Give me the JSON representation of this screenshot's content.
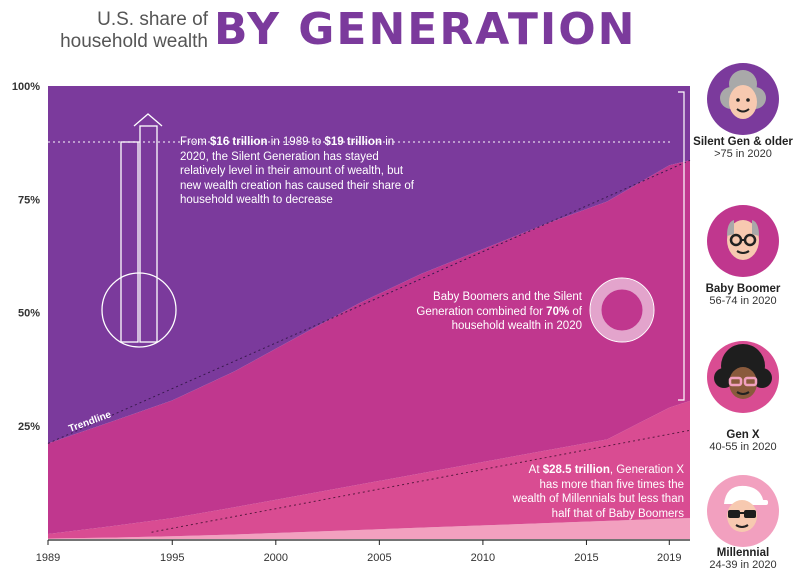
{
  "header": {
    "subtitle_line1": "U.S. share of",
    "subtitle_line2": "household wealth",
    "title": "BY GENERATION"
  },
  "chart_data": {
    "type": "area",
    "stacked": true,
    "x_range": [
      1989,
      2020
    ],
    "y_range": [
      0,
      100
    ],
    "y_ticks": [
      "100%",
      "75%",
      "50%",
      "25%"
    ],
    "x_ticks": [
      "1989",
      "1995",
      "2000",
      "2005",
      "2010",
      "2015",
      "2019"
    ],
    "x_tick_values": [
      1989,
      1995,
      2000,
      2005,
      2010,
      2015,
      2019
    ],
    "x": [
      1989,
      1992,
      1995,
      1998,
      2001,
      2004,
      2007,
      2010,
      2013,
      2016,
      2019,
      2020
    ],
    "series": [
      {
        "name": "Millennial",
        "color": "#f2a0bf",
        "values": [
          0.1,
          0.3,
          0.6,
          1,
          1.5,
          2,
          2.5,
          3,
          3.5,
          4,
          4.5,
          4.6
        ]
      },
      {
        "name": "Gen X",
        "color": "#d94c92",
        "values": [
          1,
          2.5,
          4,
          6,
          8,
          10,
          12,
          14,
          16,
          18,
          24.5,
          25.9
        ]
      },
      {
        "name": "Baby Boomer",
        "color": "#c0378e",
        "values": [
          20,
          23,
          26,
          30,
          35,
          40,
          44,
          47,
          50,
          52.5,
          53.5,
          53.1
        ]
      },
      {
        "name": "Silent Gen & older",
        "color": "#7b3a9c",
        "values": [
          78.9,
          74.2,
          69.4,
          63,
          55.5,
          48,
          41.5,
          36,
          30.5,
          25.5,
          17.5,
          16.4
        ]
      }
    ],
    "trendline_label": "Trendline",
    "colors": {
      "silent": "#7b3a9c",
      "boomer": "#c0378e",
      "genx": "#d94c92",
      "millennial": "#f2a0bf"
    }
  },
  "annotations": {
    "silent_p1": "From ",
    "silent_b1": "$16 trillion",
    "silent_p2": " in 1989 to ",
    "silent_b2": "$19 trillion",
    "silent_p3": " in 2020, the Silent Generation has stayed relatively level in their amount of wealth, but new wealth creation has caused their share of household wealth to decrease",
    "boomer_p1": "Baby Boomers and the Silent Generation combined for ",
    "boomer_b1": "70%",
    "boomer_p2": " of household wealth in 2020",
    "genx_p1": "At ",
    "genx_b1": "$28.5 trillion",
    "genx_p2": ", Generation X has more than five times the wealth of Millennials but less than half that of Baby Boomers"
  },
  "generations": [
    {
      "name": "Silent Gen & older",
      "ages": ">75 in 2020",
      "color": "#7b3a9c"
    },
    {
      "name": "Baby Boomer",
      "ages": "56-74 in 2020",
      "color": "#c0378e"
    },
    {
      "name": "Gen X",
      "ages": "40-55 in 2020",
      "color": "#d94c92"
    },
    {
      "name": "Millennial",
      "ages": "24-39 in 2020",
      "color": "#f2a0bf"
    }
  ]
}
